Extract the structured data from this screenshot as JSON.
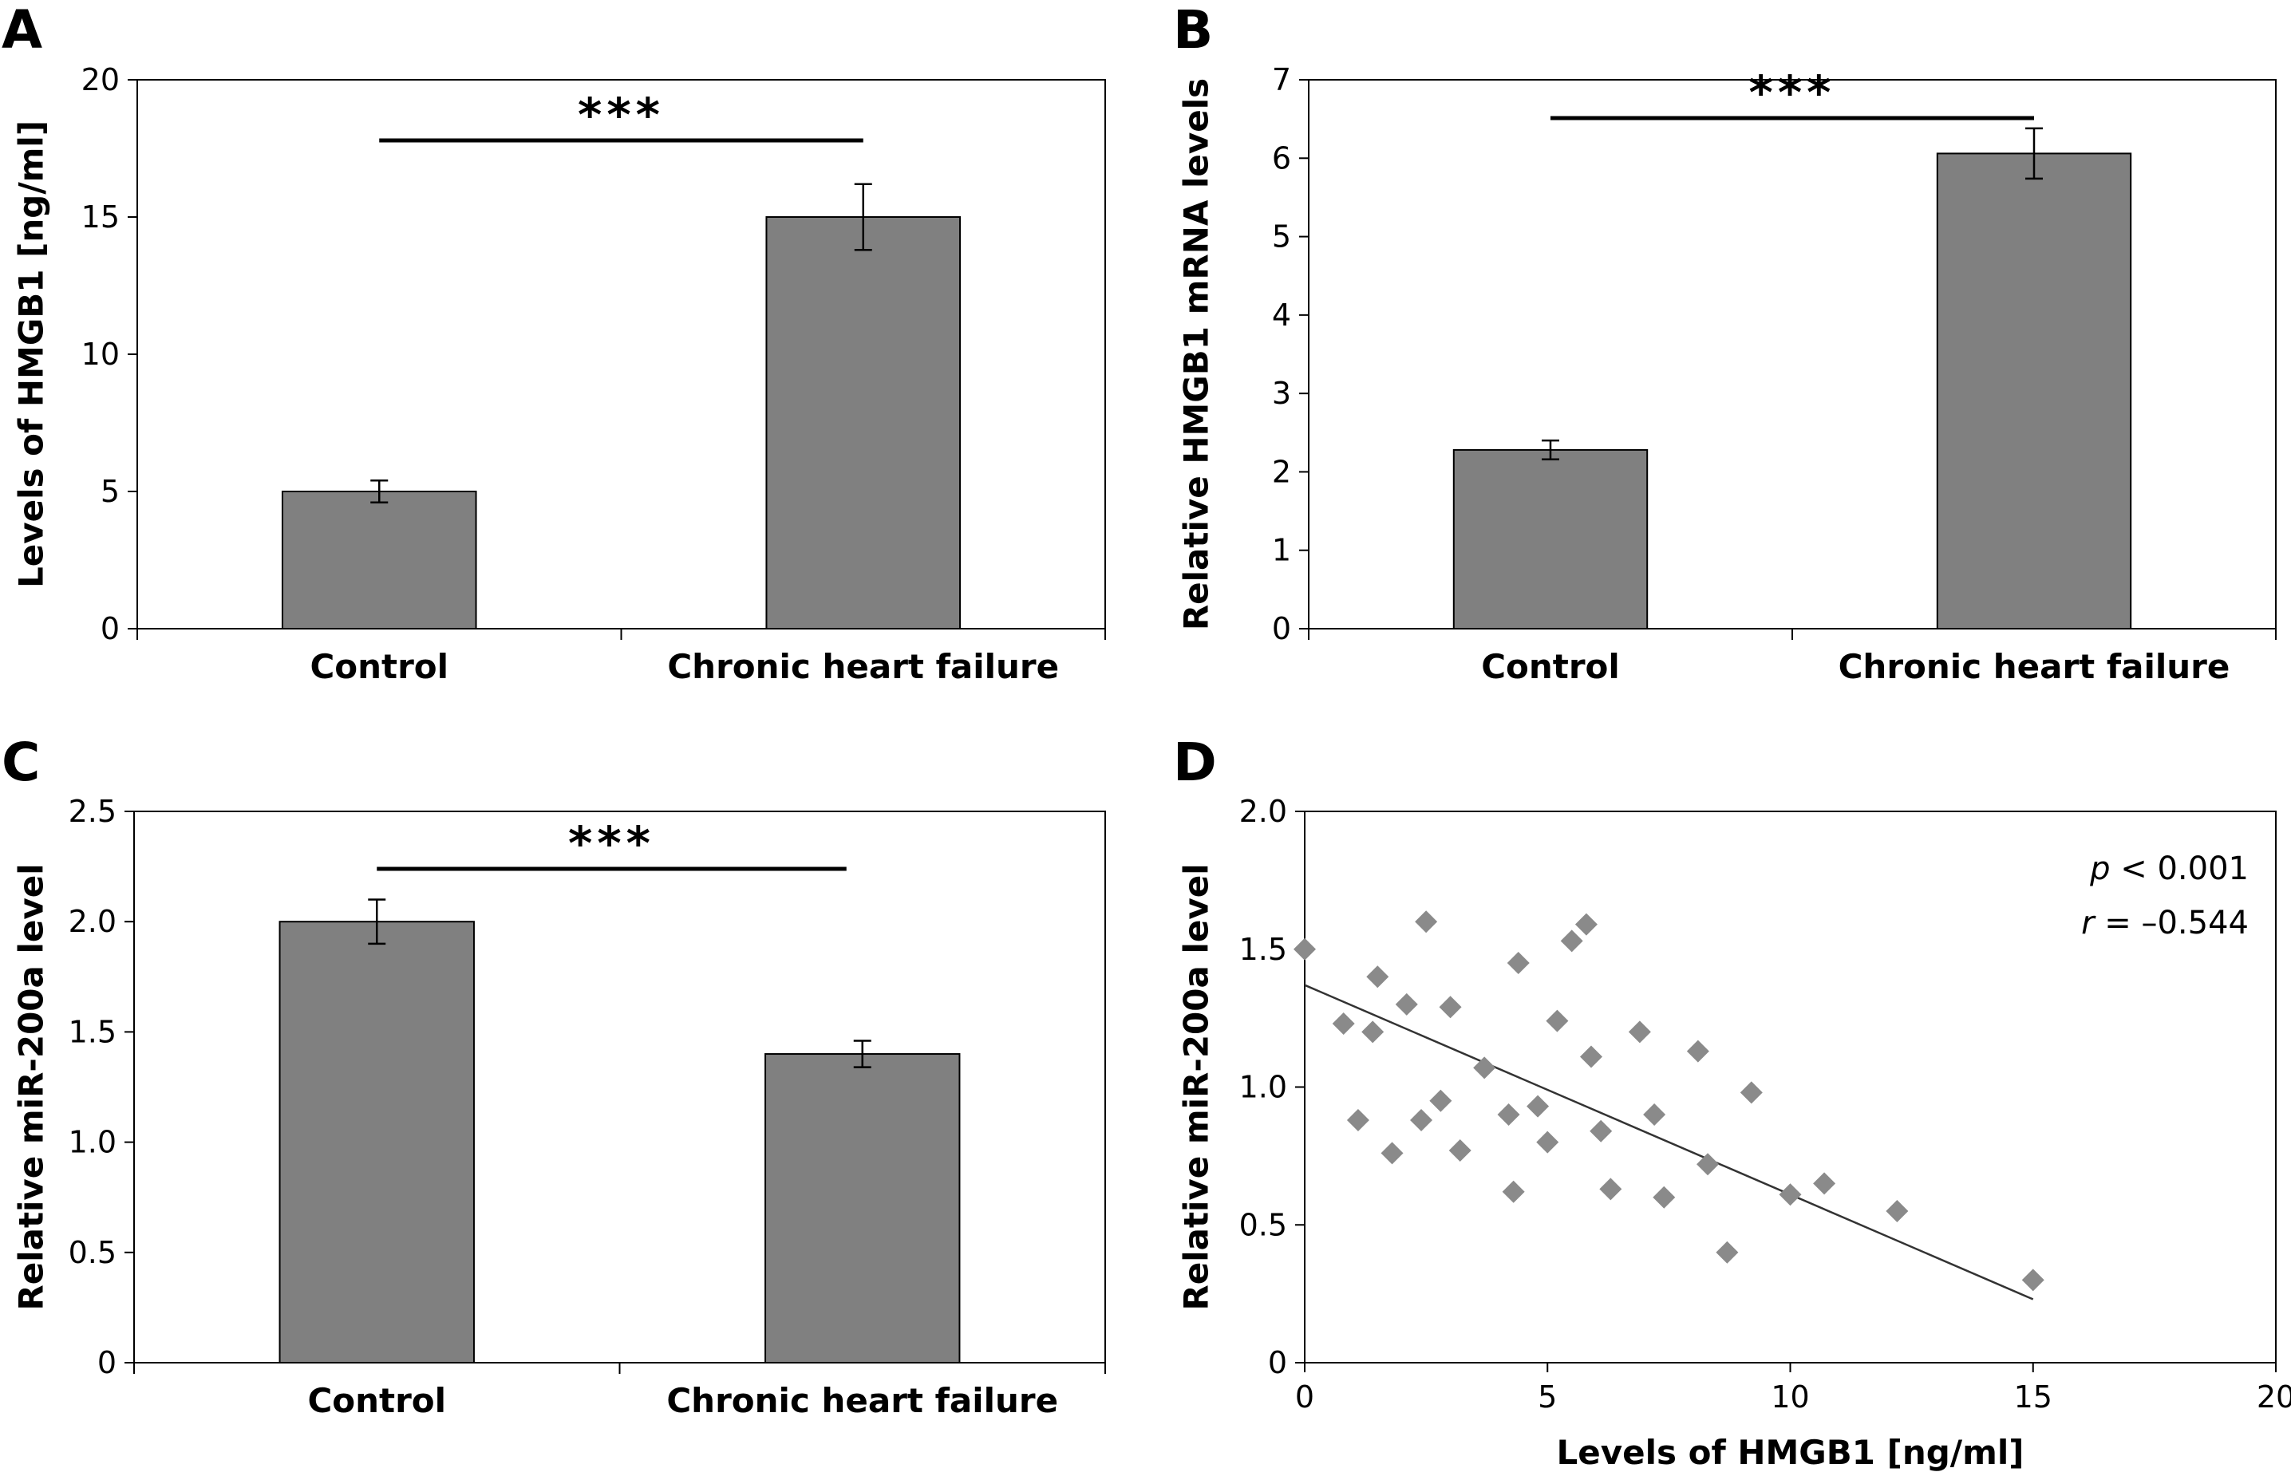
{
  "panels": [
    {
      "letter": "A",
      "chart_data": {
        "type": "bar",
        "categories": [
          "Control",
          "Chronic heart failure"
        ],
        "values": [
          5.0,
          15.0
        ],
        "errors": [
          0.4,
          1.2
        ],
        "ylabel": "Levels of HMGB1 [ng/ml]",
        "xlabel": "",
        "ylim": [
          0,
          20
        ],
        "yticks": [
          "0",
          "5",
          "10",
          "15",
          "20"
        ],
        "yticks_values": [
          0,
          5,
          10,
          15,
          20
        ],
        "significance": "***",
        "bar_color": "#808080"
      }
    },
    {
      "letter": "B",
      "chart_data": {
        "type": "bar",
        "categories": [
          "Control",
          "Chronic heart failure"
        ],
        "values": [
          2.28,
          6.06
        ],
        "errors": [
          0.12,
          0.32
        ],
        "ylabel": "Relative HMGB1 mRNA levels",
        "xlabel": "",
        "ylim": [
          0,
          7
        ],
        "yticks": [
          "0",
          "1",
          "2",
          "3",
          "4",
          "5",
          "6",
          "7"
        ],
        "yticks_values": [
          0,
          1,
          2,
          3,
          4,
          5,
          6,
          7
        ],
        "significance": "***",
        "bar_color": "#808080"
      }
    },
    {
      "letter": "C",
      "chart_data": {
        "type": "bar",
        "categories": [
          "Control",
          "Chronic heart failure"
        ],
        "values": [
          2.0,
          1.4
        ],
        "errors": [
          0.1,
          0.06
        ],
        "ylabel": "Relative miR-200a level",
        "xlabel": "",
        "ylim": [
          0,
          2.5
        ],
        "yticks": [
          "0",
          "0.5",
          "1.0",
          "1.5",
          "2.0",
          "2.5"
        ],
        "yticks_values": [
          0,
          0.5,
          1.0,
          1.5,
          2.0,
          2.5
        ],
        "significance": "***",
        "bar_color": "#808080"
      }
    },
    {
      "letter": "D",
      "chart_data": {
        "type": "scatter",
        "x": [
          0.0,
          0.8,
          1.1,
          1.4,
          1.5,
          1.8,
          2.1,
          2.4,
          2.5,
          2.8,
          3.0,
          3.2,
          3.7,
          4.2,
          4.3,
          4.4,
          4.8,
          5.0,
          5.2,
          5.5,
          5.8,
          5.9,
          6.1,
          6.3,
          6.9,
          7.2,
          7.4,
          8.1,
          8.3,
          8.7,
          9.2,
          10.0,
          10.7,
          12.2,
          15.0
        ],
        "y": [
          1.5,
          1.23,
          0.88,
          1.2,
          1.4,
          0.76,
          1.3,
          0.88,
          1.6,
          0.95,
          1.29,
          0.77,
          1.07,
          0.9,
          0.62,
          1.45,
          0.93,
          0.8,
          1.24,
          1.53,
          1.59,
          1.11,
          0.84,
          0.63,
          1.2,
          0.9,
          0.6,
          1.13,
          0.72,
          0.4,
          0.98,
          0.61,
          0.65,
          0.55,
          0.3
        ],
        "fit_line": {
          "x": [
            0,
            15
          ],
          "y": [
            1.37,
            0.23
          ]
        },
        "xlabel": "Levels of HMGB1 [ng/ml]",
        "ylabel": "Relative miR-200a level",
        "xlim": [
          0,
          20
        ],
        "ylim": [
          0,
          2.0
        ],
        "xticks": [
          "0",
          "5",
          "10",
          "15",
          "20"
        ],
        "xticks_values": [
          0,
          5,
          10,
          15,
          20
        ],
        "yticks": [
          "0",
          "0.5",
          "1.0",
          "1.5",
          "2.0"
        ],
        "yticks_values": [
          0,
          0.5,
          1.0,
          1.5,
          2.0
        ],
        "annotation_p_symbol": "p",
        "annotation_p_rest": " < 0.001",
        "annotation_r_symbol": "r",
        "annotation_r_rest": " = –0.544",
        "marker_color": "#8a8a8a"
      }
    }
  ]
}
